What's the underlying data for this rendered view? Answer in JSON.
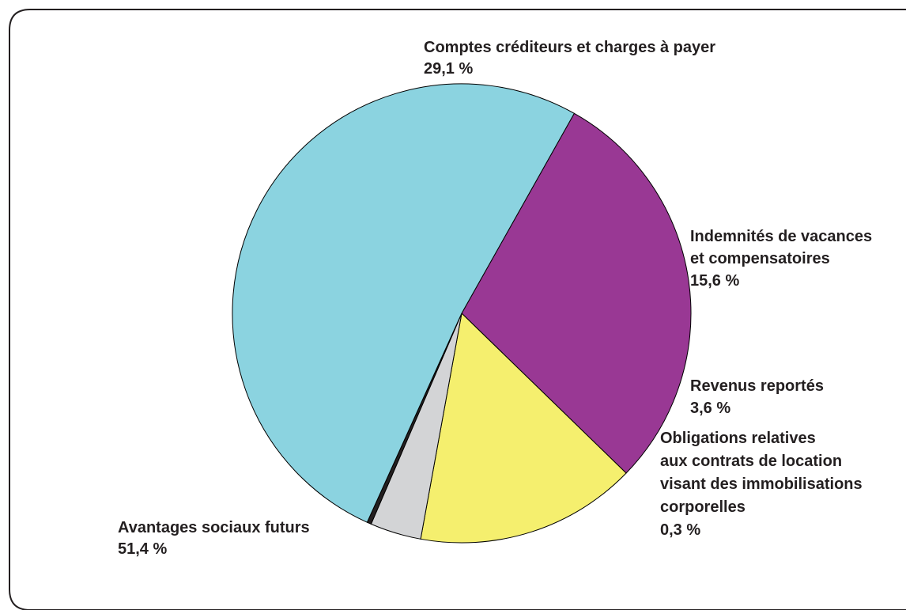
{
  "chart_data": {
    "type": "pie",
    "title": "",
    "slices": [
      {
        "label_lines": [
          "Comptes créditeurs et charges à payer"
        ],
        "value_label": "29,1 %",
        "value": 29.1,
        "color": "#993894"
      },
      {
        "label_lines": [
          "Indemnités de vacances",
          "et compensatoires"
        ],
        "value_label": "15,6 %",
        "value": 15.6,
        "color": "#f5ef6e"
      },
      {
        "label_lines": [
          "Revenus reportés"
        ],
        "value_label": "3,6 %",
        "value": 3.6,
        "color": "#d3d4d6"
      },
      {
        "label_lines": [
          "Obligations relatives",
          "aux contrats de location",
          "visant des immobilisations",
          "corporelles"
        ],
        "value_label": "0,3 %",
        "value": 0.3,
        "color": "#231f20"
      },
      {
        "label_lines": [
          "Avantages sociaux futurs"
        ],
        "value_label": "51,4 %",
        "value": 51.4,
        "color": "#8bd3e0"
      }
    ]
  }
}
